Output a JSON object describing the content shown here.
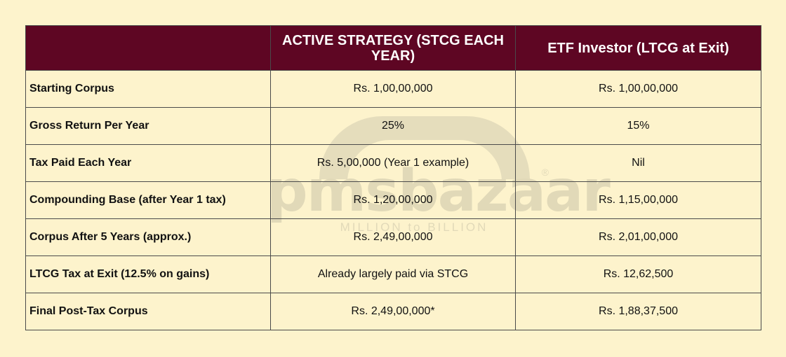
{
  "watermark": {
    "brand": "pmsbazaar",
    "registered": "®",
    "tagline": "MILLION to BILLION"
  },
  "table": {
    "headers": [
      "",
      "ACTIVE STRATEGY (STCG EACH YEAR)",
      "ETF Investor (LTCG at Exit)"
    ],
    "rows": [
      {
        "label": "Starting Corpus",
        "active": "Rs. 1,00,00,000",
        "etf": "Rs. 1,00,00,000"
      },
      {
        "label": "Gross Return Per Year",
        "active": "25%",
        "etf": "15%"
      },
      {
        "label": "Tax Paid Each Year",
        "active": "Rs. 5,00,000 (Year 1 example)",
        "etf": "Nil"
      },
      {
        "label": "Compounding Base (after Year 1 tax)",
        "active": "Rs. 1,20,00,000",
        "etf": "Rs. 1,15,00,000"
      },
      {
        "label": "Corpus After 5 Years (approx.)",
        "active": "Rs. 2,49,00,000",
        "etf": "Rs. 2,01,00,000"
      },
      {
        "label": "LTCG Tax at Exit (12.5% on gains)",
        "active": "Already largely paid via STCG",
        "etf": "Rs. 12,62,500"
      },
      {
        "label": "Final Post-Tax Corpus",
        "active": "Rs. 2,49,00,000*",
        "etf": "Rs. 1,88,37,500"
      }
    ]
  }
}
